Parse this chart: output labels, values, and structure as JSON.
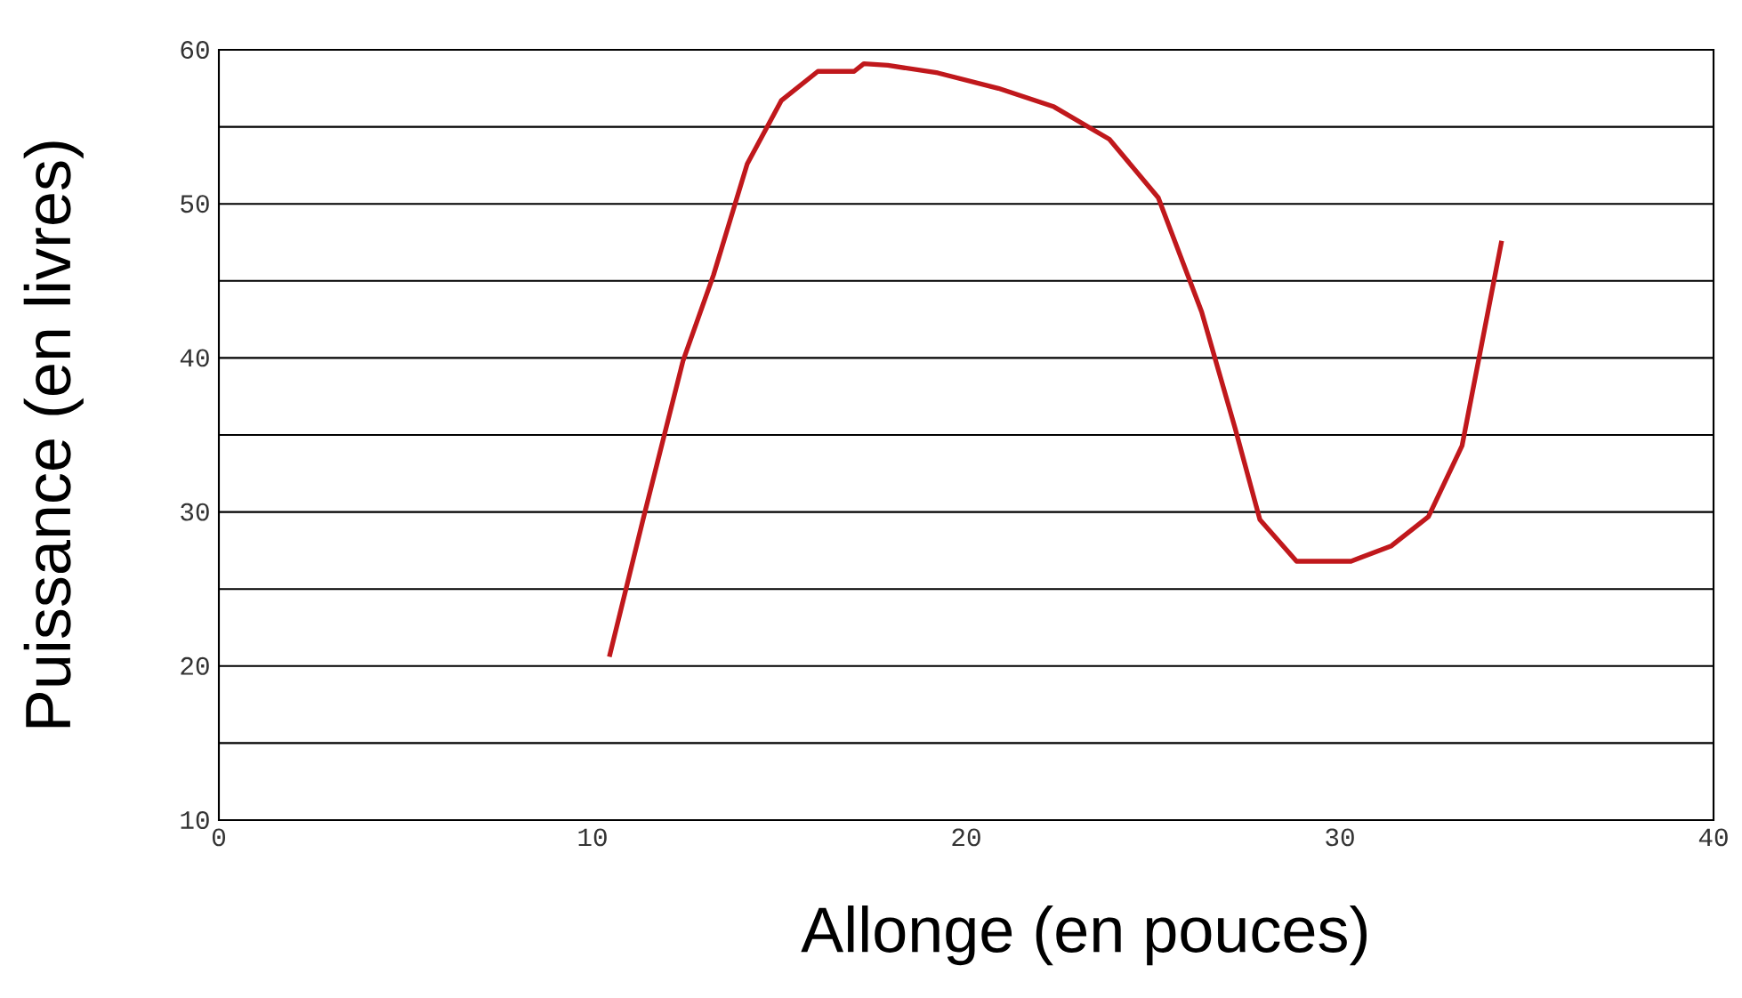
{
  "chart_data": {
    "type": "line",
    "xlabel": "Allonge (en pouces)",
    "ylabel": "Puissance (en livres)",
    "x": [
      10.45,
      11.35,
      12.42,
      13.24,
      14.14,
      15.05,
      16.03,
      17.0,
      17.26,
      17.9,
      19.24,
      20.86,
      22.35,
      23.83,
      25.14,
      26.3,
      27.2,
      27.86,
      28.84,
      30.3,
      31.38,
      32.37,
      33.27,
      34.33
    ],
    "series": [
      {
        "color": "#c0181c",
        "values": [
          20.6,
          29.5,
          39.8,
          45.4,
          52.6,
          56.7,
          58.6,
          58.6,
          59.1,
          59.0,
          58.5,
          57.5,
          56.3,
          54.2,
          50.4,
          43.0,
          35.4,
          29.5,
          26.8,
          26.8,
          27.8,
          29.7,
          34.3,
          47.6
        ]
      }
    ],
    "xlim": [
      0,
      40
    ],
    "ylim": [
      10,
      60
    ],
    "xticks": [
      0,
      10,
      20,
      30,
      40
    ],
    "yticks": [
      10,
      {
        "value": 15,
        "label": null
      },
      20,
      {
        "value": 25,
        "label": null
      },
      30,
      {
        "value": 35,
        "label": null
      },
      40,
      {
        "value": 45,
        "label": null
      },
      50,
      {
        "value": 55,
        "label": null
      },
      60
    ],
    "grid": "y",
    "marker": "none",
    "line_style": "solid"
  }
}
